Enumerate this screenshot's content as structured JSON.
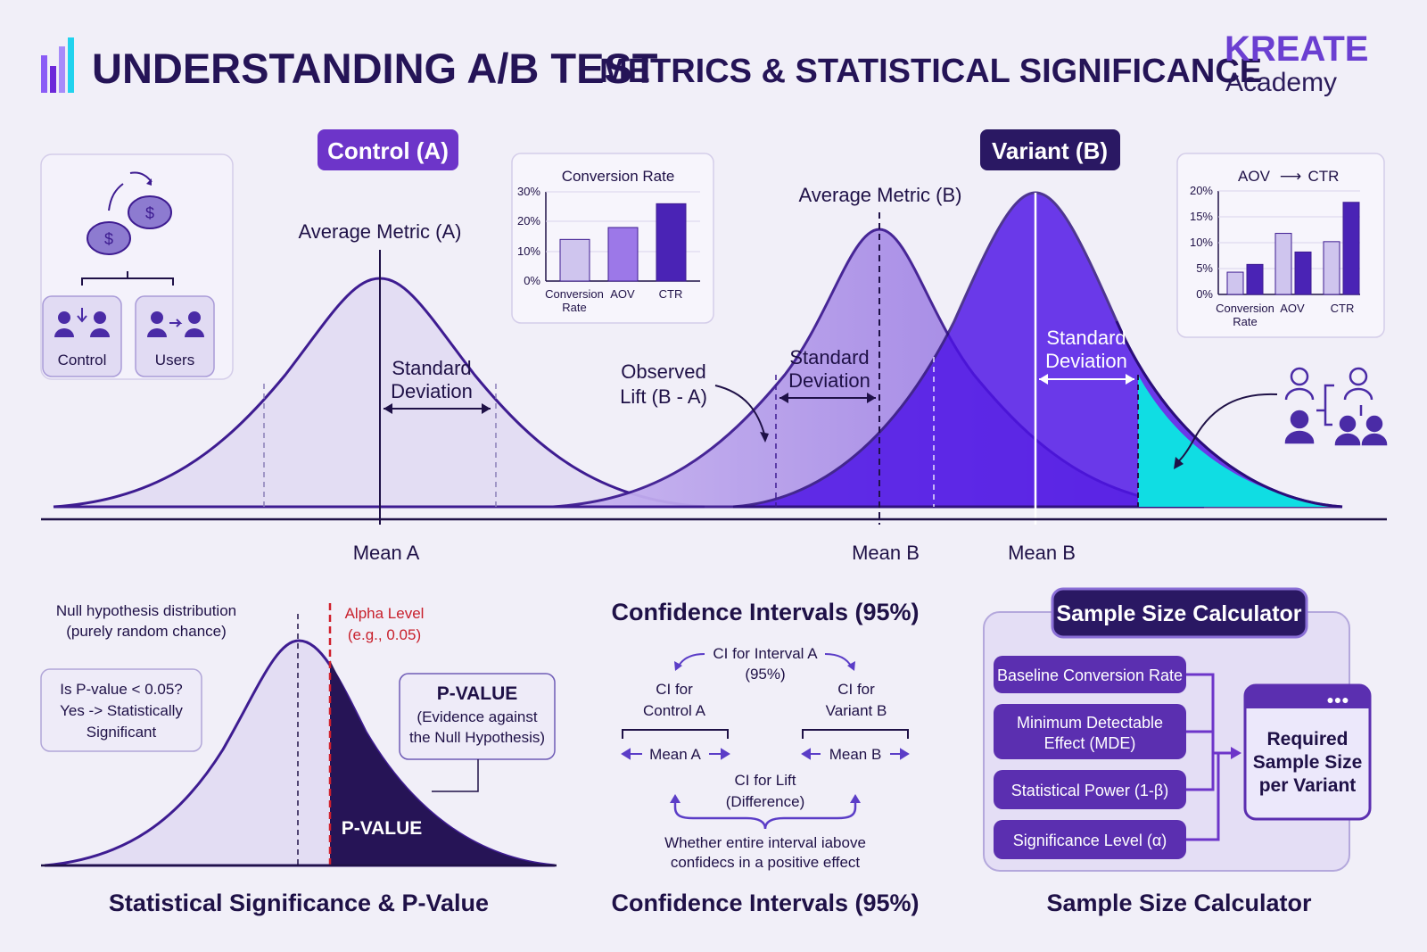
{
  "header": {
    "title_main": "UNDERSTANDING A/B TEST",
    "title_sub": "METRICS & STATISTICAL SIGNIFICANCE",
    "brand": "KREATE",
    "brand_sub": "Academy",
    "logo_icon": "bar-chart-icon"
  },
  "distributions": {
    "control_pill": "Control (A)",
    "variant_pill": "Variant (B)",
    "avg_metric_a": "Average Metric (A)",
    "avg_metric_b": "Average Metric (B)",
    "std_dev_1": "Standard",
    "std_dev_2": "Deviation",
    "observed_lift_1": "Observed",
    "observed_lift_2": "Lift (B - A)",
    "mean_a": "Mean A",
    "mean_b": "Mean B",
    "mean_b2": "Mean B",
    "control_card": "Control",
    "users_card": "Users",
    "colors": {
      "control_fill": "#e2dcf3",
      "variant_fill": "#b79ee6",
      "variant_dark": "#4d12e6",
      "cyan": "#10dde3",
      "outline": "#3e1c91"
    }
  },
  "chart_left": {
    "title": "Conversion Rate",
    "y_ticks": [
      "0%",
      "10%",
      "20%",
      "30%"
    ],
    "cat1_line1": "Conversion",
    "cat1_line2": "Rate",
    "cat2": "AOV",
    "cat3": "CTR"
  },
  "chart_right": {
    "title": "AOV",
    "title_arrow": "⟶",
    "title2": "CTR",
    "y_ticks": [
      "0%",
      "5%",
      "10%",
      "15%",
      "20%"
    ],
    "cat1_line1": "Conversion",
    "cat1_line2": "Rate",
    "cat2": "AOV",
    "cat3": "CTR"
  },
  "chart_data": [
    {
      "type": "bar",
      "title": "Conversion Rate",
      "categories": [
        "Conversion Rate",
        "AOV",
        "CTR"
      ],
      "values": [
        14,
        18,
        26
      ],
      "ylim": [
        0,
        30
      ],
      "colors": [
        "#cfc5ee",
        "#9c78e8",
        "#4a23b5"
      ]
    },
    {
      "type": "bar",
      "title": "AOV → CTR",
      "categories": [
        "Conversion Rate",
        "AOV",
        "CTR"
      ],
      "series": [
        {
          "values": [
            4.3,
            11.8,
            10.2
          ]
        },
        {
          "values": [
            5.8,
            8.2,
            17.8
          ]
        }
      ],
      "ylim": [
        0,
        20
      ],
      "colors": [
        "#cfc5ee",
        "#4a23b5"
      ]
    }
  ],
  "significance": {
    "null_1": "Null hypothesis distribution",
    "null_2": "(purely random chance)",
    "alpha_1": "Alpha Level",
    "alpha_2": "(e.g., 0.05)",
    "q1": "Is P-value < 0.05?",
    "q2": "Yes -> Statistically",
    "q3": "Significant",
    "pv_title": "P-VALUE",
    "pv_1": "(Evidence against",
    "pv_2": "the Null Hypothesis)",
    "pv_area": "P-VALUE",
    "section_title": "Statistical Significance & P-Value"
  },
  "confidence": {
    "top_title": "Confidence Intervals (95%)",
    "ci_interval_1": "CI for Interval A",
    "ci_interval_2": "(95%)",
    "ci_control_1": "CI for",
    "ci_control_2": "Control A",
    "ci_variant_1": "CI for",
    "ci_variant_2": "Variant B",
    "mean_a": "Mean A",
    "mean_b": "Mean B",
    "ci_lift_1": "CI for Lift",
    "ci_lift_2": "(Difference)",
    "note_1": "Whether entire interval iabove",
    "note_2": "confidecs in a positive effect",
    "section_title": "Confidence Intervals (95%)"
  },
  "calculator": {
    "title": "Sample Size Calculator",
    "inputs": [
      "Baseline Conversion Rate",
      "Minimum Detectable",
      "Effect (MDE)",
      "Statistical Power (1-β)",
      "Significance Level (α)"
    ],
    "output_1": "Required",
    "output_2": "Sample Size",
    "output_3": "per Variant",
    "window_dots": "●●●",
    "section_title": "Sample Size Calculator"
  }
}
